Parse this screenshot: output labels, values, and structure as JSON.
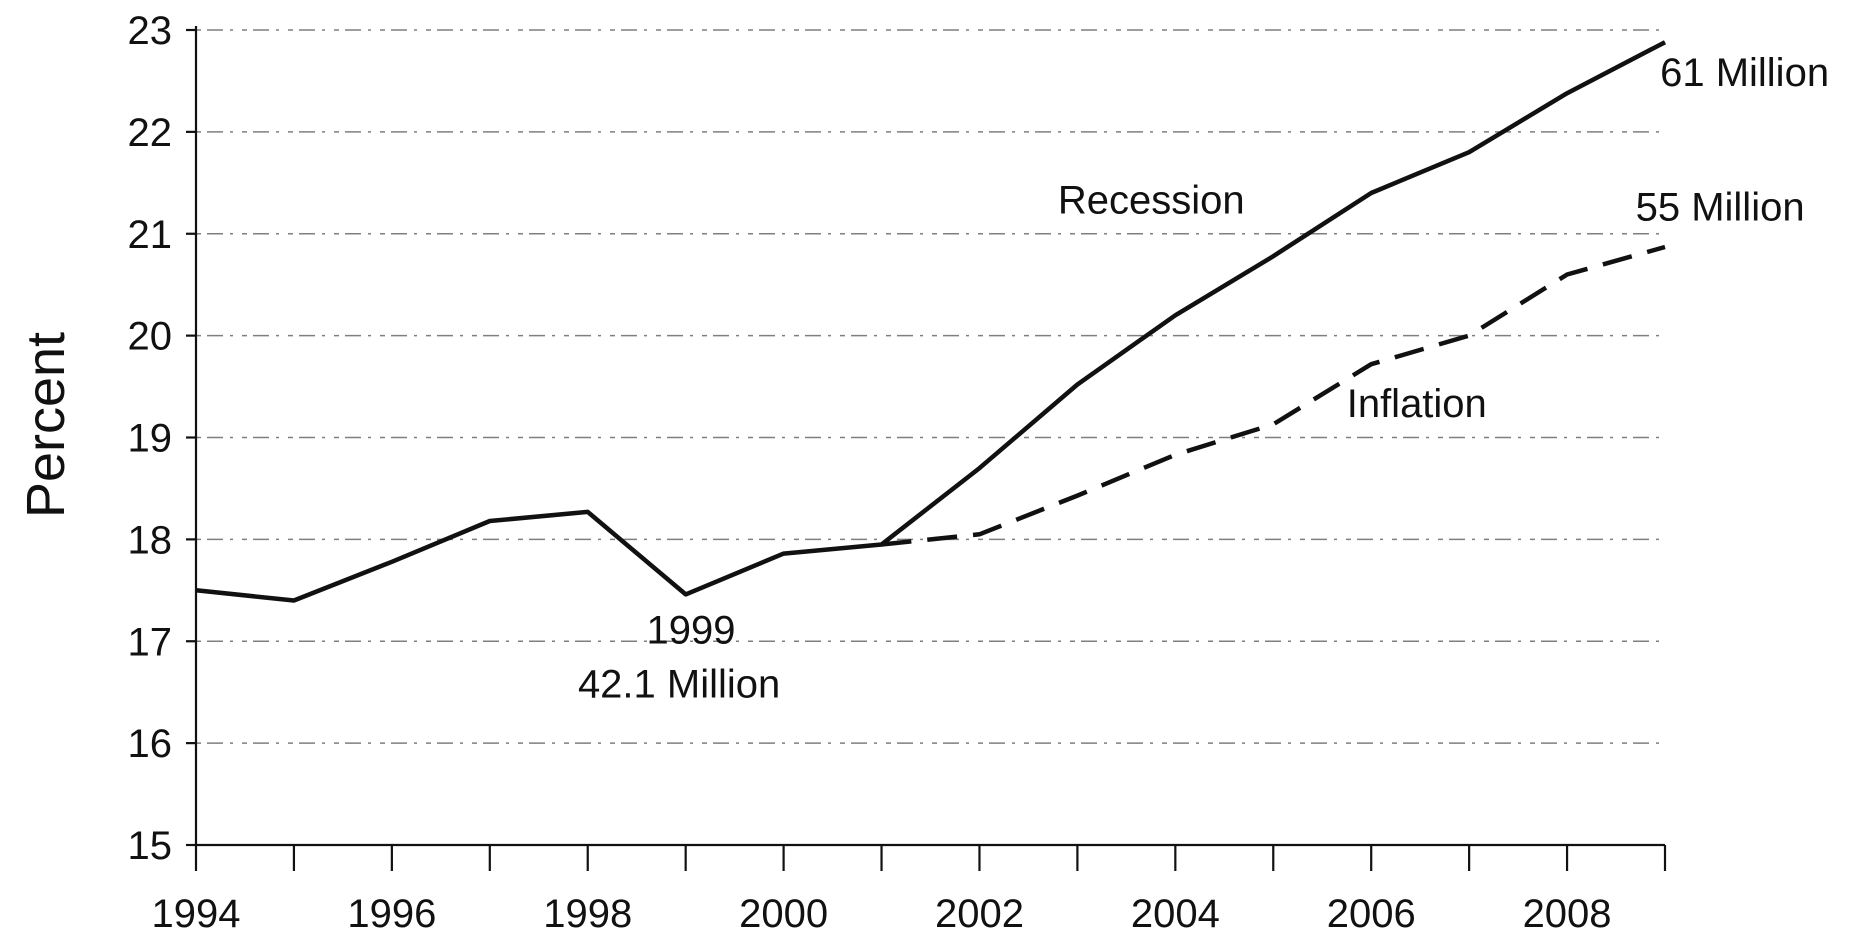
{
  "chart_data": {
    "type": "line",
    "ylabel": "Percent",
    "xlim": [
      1994,
      2009
    ],
    "ylim": [
      15,
      23
    ],
    "y_ticks": [
      15,
      16,
      17,
      18,
      19,
      20,
      21,
      22,
      23
    ],
    "x_ticks": [
      1994,
      1996,
      1998,
      2000,
      2002,
      2004,
      2006,
      2008
    ],
    "grid": true,
    "series": [
      {
        "name": "Recession",
        "style": "solid",
        "color": "#111111",
        "x": [
          1994,
          1995,
          1996,
          1997,
          1998,
          1999,
          2000,
          2001,
          2002,
          2003,
          2004,
          2005,
          2006,
          2007,
          2008,
          2009
        ],
        "values": [
          17.5,
          17.4,
          17.78,
          18.18,
          18.27,
          17.46,
          17.86,
          17.95,
          18.7,
          19.52,
          20.2,
          20.78,
          21.4,
          21.8,
          22.38,
          22.88
        ]
      },
      {
        "name": "Inflation",
        "style": "dashed",
        "color": "#111111",
        "x": [
          2001,
          2002,
          2003,
          2004,
          2005,
          2006,
          2007,
          2008,
          2009
        ],
        "values": [
          17.95,
          18.05,
          18.43,
          18.83,
          19.13,
          19.72,
          20.0,
          20.6,
          20.87
        ]
      }
    ],
    "annotations": [
      {
        "id": "recession",
        "text": "Recession",
        "x": 2002.8,
        "y": 21.2
      },
      {
        "id": "inflation",
        "text": "Inflation",
        "x": 2005.75,
        "y": 19.2
      },
      {
        "id": "61m",
        "text": "61 Million",
        "x": 2008.95,
        "y": 22.45
      },
      {
        "id": "55m",
        "text": "55 Million",
        "x": 2008.7,
        "y": 21.13
      },
      {
        "id": "1999",
        "text": "1999",
        "x": 1998.6,
        "y": 16.98
      },
      {
        "id": "42m",
        "text": "42.1 Million",
        "x": 1997.9,
        "y": 16.45
      }
    ]
  }
}
